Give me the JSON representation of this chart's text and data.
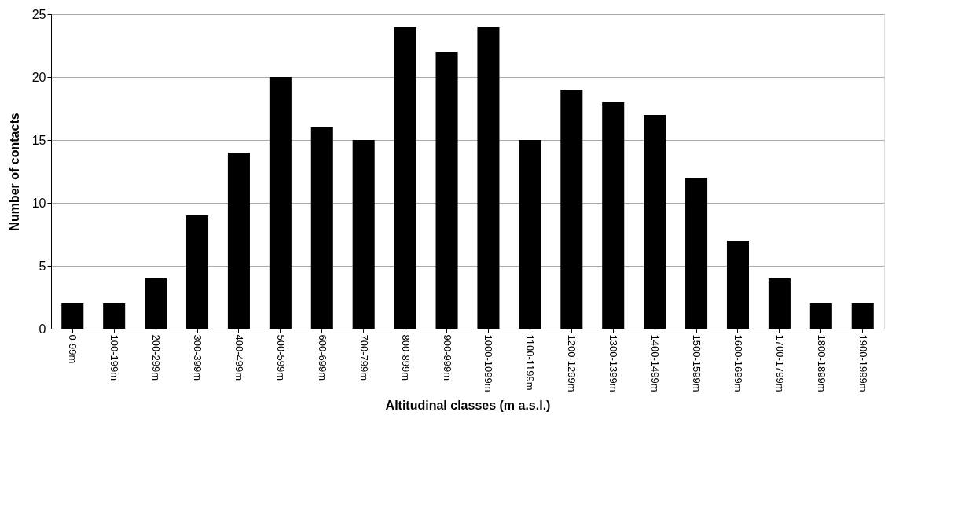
{
  "chart_data": {
    "type": "bar",
    "xlabel": "Altitudinal classes (m a.s.l.)",
    "ylabel": "Number of contacts",
    "categories": [
      "0-99m",
      "100-199m",
      "200-299m",
      "300-399m",
      "400-499m",
      "500-599m",
      "600-699m",
      "700-799m",
      "800-899m",
      "900-999m",
      "1000-1099m",
      "1100-1199m",
      "1200-1299m",
      "1300-1399m",
      "1400-1499m",
      "1500-1599m",
      "1600-1699m",
      "1700-1799m",
      "1800-1899m",
      "1900-1999m"
    ],
    "values": [
      2,
      2,
      4,
      9,
      14,
      20,
      16,
      15,
      24,
      22,
      24,
      15,
      19,
      18,
      17,
      12,
      7,
      4,
      2,
      2
    ],
    "color": "#000000",
    "ylim": [
      0,
      25
    ],
    "yticks": [
      0,
      5,
      10,
      15,
      20,
      25
    ],
    "grid": "y"
  }
}
